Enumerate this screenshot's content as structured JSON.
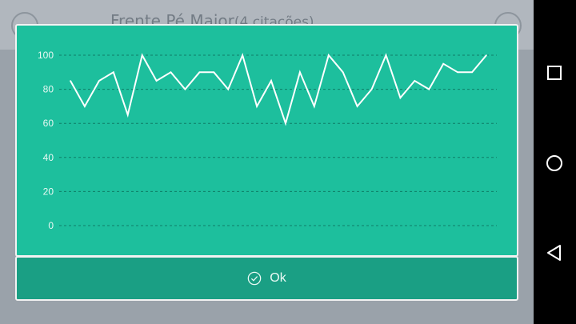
{
  "background": {
    "title": "Frente Pé Maior",
    "subtitle": "(4 citações)"
  },
  "dialog": {
    "ok_label": "Ok",
    "ok_icon": "check-circle-icon"
  },
  "nav": {
    "recents_icon": "square-icon",
    "home_icon": "circle-icon",
    "back_icon": "triangle-back-icon"
  },
  "colors": {
    "panel": "#1dbf9d",
    "button": "#1a9f84",
    "line": "#ffffff",
    "grid": "#0f7d66"
  },
  "chart_data": {
    "type": "line",
    "title": "",
    "xlabel": "",
    "ylabel": "",
    "ylim": [
      0,
      100
    ],
    "yticks": [
      0,
      20,
      40,
      60,
      80,
      100
    ],
    "grid": true,
    "series": [
      {
        "values": [
          85,
          70,
          85,
          90,
          65,
          100,
          85,
          90,
          80,
          90,
          90,
          80,
          100,
          70,
          85,
          60,
          90,
          70,
          100,
          90,
          70,
          80,
          100,
          75,
          85,
          80,
          95,
          90,
          90,
          100
        ]
      }
    ]
  }
}
